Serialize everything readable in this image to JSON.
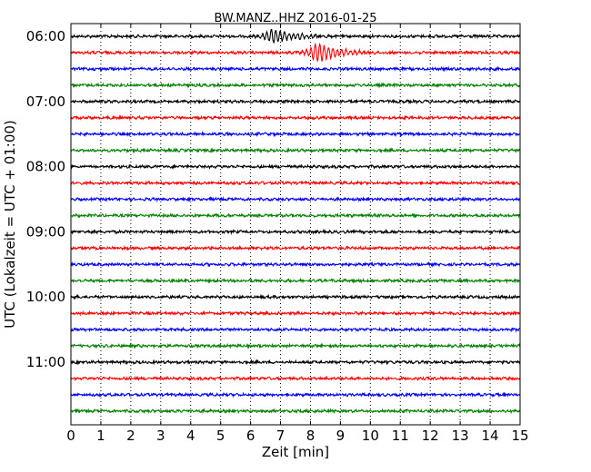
{
  "chart_data": {
    "type": "line",
    "title": "BW.MANZ..HHZ 2016-01-25",
    "xlabel": "Zeit  [min]",
    "ylabel": "UTC (Lokalzeit = UTC + 01:00)",
    "xlim": [
      0,
      15
    ],
    "x_ticks": [
      "0",
      "1",
      "2",
      "3",
      "4",
      "5",
      "6",
      "7",
      "8",
      "9",
      "10",
      "11",
      "12",
      "13",
      "14",
      "15"
    ],
    "y_tick_labels": [
      "06:00",
      "07:00",
      "08:00",
      "09:00",
      "10:00",
      "11:00"
    ],
    "grid": "vertical-dotted",
    "trace_colors": [
      "#000000",
      "#ff0000",
      "#0000ff",
      "#008000"
    ],
    "trace_count": 24,
    "trace_start_times": [
      "06:00",
      "06:15",
      "06:30",
      "06:45",
      "07:00",
      "07:15",
      "07:30",
      "07:45",
      "08:00",
      "08:15",
      "08:30",
      "08:45",
      "09:00",
      "09:15",
      "09:30",
      "09:45",
      "10:00",
      "10:15",
      "10:30",
      "10:45",
      "11:00",
      "11:15",
      "11:30",
      "11:45"
    ],
    "events": [
      {
        "trace": 0,
        "minute": 6.8,
        "amplitude": 2.6
      },
      {
        "trace": 1,
        "minute": 8.25,
        "amplitude": 3.4
      }
    ]
  }
}
